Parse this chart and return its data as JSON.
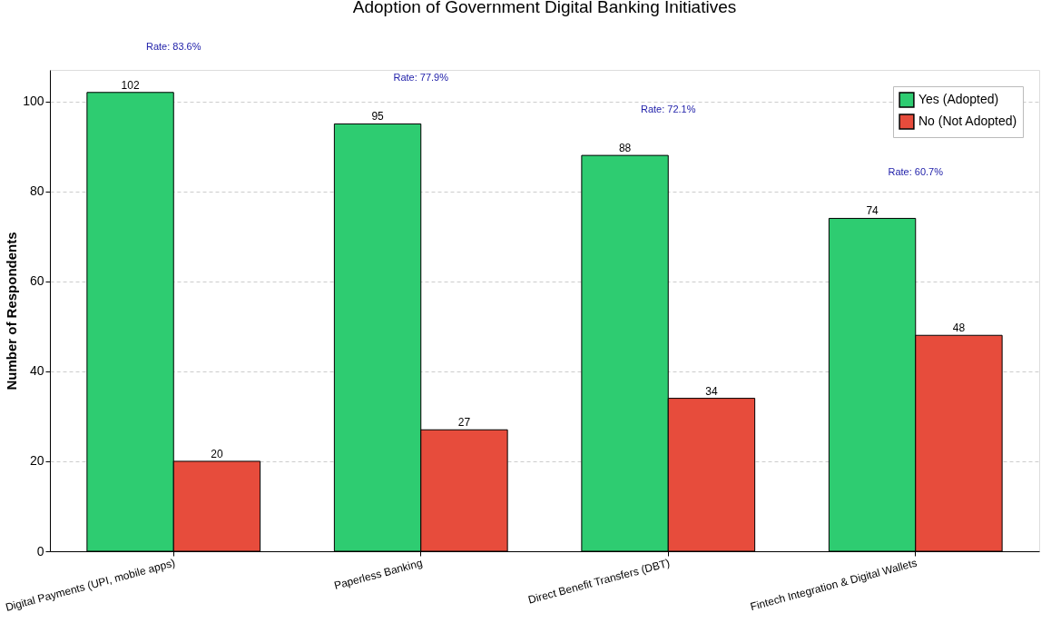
{
  "chart_data": {
    "type": "bar",
    "title": "Adoption of Government Digital Banking Initiatives",
    "ylabel": "Number of Respondents",
    "categories": [
      "Digital Payments (UPI, mobile apps)",
      "Paperless Banking",
      "Direct Benefit Transfers (DBT)",
      "Fintech Integration & Digital Wallets"
    ],
    "series": [
      {
        "name": "Yes (Adopted)",
        "color": "#2ecc71",
        "values": [
          102,
          95,
          88,
          74
        ]
      },
      {
        "name": "No (Not Adopted)",
        "color": "#e74c3c",
        "values": [
          20,
          27,
          34,
          48
        ]
      }
    ],
    "ylim": [
      0,
      107
    ],
    "yticks": [
      0,
      20,
      40,
      60,
      80,
      100
    ],
    "grid": "y",
    "legend": "top right",
    "data_labels": true,
    "annotations": [
      "Rate: 83.6%",
      "Rate: 77.9%",
      "Rate: 72.1%",
      "Rate: 60.7%"
    ]
  }
}
